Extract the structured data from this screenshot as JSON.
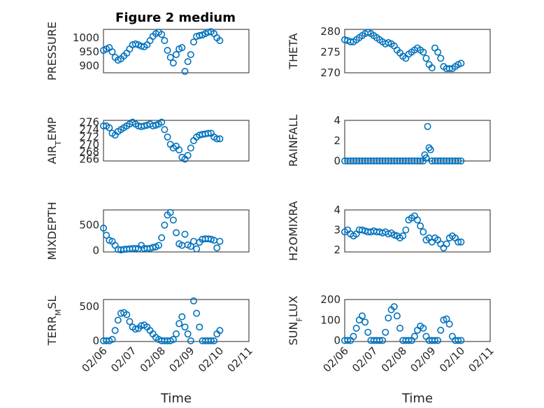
{
  "figure_title": "Figure 2 medium",
  "colors": {
    "marker": "#0072BD",
    "axis": "#262626",
    "grid": "#dcdcdc"
  },
  "chart_data": [
    {
      "type": "scatter",
      "marker": "circle-open",
      "grid": true,
      "title": "Figure 2 medium",
      "ylabel": "PRESSURE",
      "xlabel": "",
      "xlim": [
        0,
        5
      ],
      "ylim": [
        875,
        1030
      ],
      "yticks": [
        900,
        950,
        1000
      ],
      "yticklabels": [
        "900",
        "950",
        "1000"
      ],
      "xticklabels": [],
      "x": [
        0.0,
        0.1,
        0.2,
        0.3,
        0.4,
        0.5,
        0.6,
        0.7,
        0.8,
        0.9,
        1.0,
        1.1,
        1.2,
        1.3,
        1.4,
        1.5,
        1.6,
        1.7,
        1.8,
        1.9,
        2.0,
        2.1,
        2.2,
        2.3,
        2.4,
        2.5,
        2.6,
        2.7,
        2.8,
        2.9,
        3.0,
        3.1,
        3.2,
        3.3,
        3.4,
        3.5,
        3.6,
        3.7,
        3.8,
        3.9,
        4.0
      ],
      "y": [
        955,
        960,
        965,
        950,
        930,
        920,
        925,
        935,
        945,
        960,
        975,
        978,
        975,
        970,
        968,
        975,
        990,
        1005,
        1015,
        1020,
        1012,
        990,
        955,
        930,
        910,
        940,
        960,
        965,
        880,
        915,
        940,
        985,
        1005,
        1008,
        1010,
        1015,
        1020,
        1022,
        1015,
        1000,
        990
      ]
    },
    {
      "type": "scatter",
      "marker": "circle-open",
      "grid": true,
      "ylabel": "THETA",
      "xlabel": "",
      "xlim": [
        0,
        5
      ],
      "ylim": [
        270,
        280.5
      ],
      "yticks": [
        270,
        275,
        280
      ],
      "yticklabels": [
        "270",
        "275",
        "280"
      ],
      "xticklabels": [],
      "x": [
        0.0,
        0.1,
        0.2,
        0.3,
        0.4,
        0.5,
        0.6,
        0.7,
        0.8,
        0.9,
        1.0,
        1.1,
        1.2,
        1.3,
        1.4,
        1.5,
        1.6,
        1.7,
        1.8,
        1.9,
        2.0,
        2.1,
        2.2,
        2.3,
        2.4,
        2.5,
        2.6,
        2.7,
        2.8,
        2.9,
        3.0,
        3.1,
        3.2,
        3.3,
        3.4,
        3.5,
        3.6,
        3.7,
        3.8,
        3.9,
        4.0
      ],
      "y": [
        278,
        277.8,
        277.5,
        277.5,
        278,
        278.5,
        279,
        279.5,
        279.8,
        279.5,
        279,
        278.5,
        278,
        277.5,
        277,
        277.3,
        277,
        276.5,
        275.5,
        274.8,
        274,
        273.5,
        274.5,
        275,
        275.5,
        276,
        275.5,
        275,
        273.5,
        272,
        271.2,
        276,
        275,
        273.5,
        271.5,
        271,
        271,
        271,
        271.5,
        272,
        272.3
      ]
    },
    {
      "type": "scatter",
      "marker": "circle-open",
      "grid": true,
      "ylabel": "AIR_TEMP",
      "xlabel": "",
      "xlim": [
        0,
        5
      ],
      "ylim": [
        265.5,
        276.5
      ],
      "yticks": [
        266,
        268,
        270,
        272,
        274,
        276
      ],
      "yticklabels": [
        "266",
        "268",
        "270",
        "272",
        "274",
        "276"
      ],
      "xticklabels": [],
      "x": [
        0.0,
        0.1,
        0.2,
        0.3,
        0.4,
        0.5,
        0.6,
        0.7,
        0.8,
        0.9,
        1.0,
        1.1,
        1.2,
        1.3,
        1.4,
        1.5,
        1.6,
        1.7,
        1.8,
        1.9,
        2.0,
        2.1,
        2.2,
        2.3,
        2.4,
        2.5,
        2.6,
        2.7,
        2.8,
        2.9,
        3.0,
        3.1,
        3.2,
        3.3,
        3.4,
        3.5,
        3.6,
        3.7,
        3.8,
        3.9,
        4.0
      ],
      "y": [
        275,
        275,
        274.5,
        273,
        272.5,
        273.5,
        274,
        274.5,
        275,
        275.5,
        276,
        275.5,
        275,
        274.8,
        275,
        275.2,
        275.5,
        275,
        275.2,
        275.5,
        276,
        274,
        272,
        270,
        269,
        269.5,
        268.5,
        266.5,
        266,
        267,
        269,
        271,
        272,
        272.5,
        272.7,
        272.8,
        273,
        273,
        272,
        271.5,
        271.5
      ]
    },
    {
      "type": "scatter",
      "marker": "circle-open",
      "grid": true,
      "ylabel": "RAINFALL",
      "xlabel": "",
      "xlim": [
        0,
        5
      ],
      "ylim": [
        0,
        4
      ],
      "yticks": [
        0,
        2,
        4
      ],
      "yticklabels": [
        "0",
        "2",
        "4"
      ],
      "xticklabels": [],
      "x": [
        0.0,
        0.1,
        0.2,
        0.3,
        0.4,
        0.5,
        0.6,
        0.7,
        0.8,
        0.9,
        1.0,
        1.1,
        1.2,
        1.3,
        1.4,
        1.5,
        1.6,
        1.7,
        1.8,
        1.9,
        2.0,
        2.1,
        2.2,
        2.3,
        2.4,
        2.5,
        2.6,
        2.7,
        2.75,
        2.8,
        2.85,
        2.9,
        2.95,
        3.0,
        3.1,
        3.2,
        3.3,
        3.4,
        3.5,
        3.6,
        3.7,
        3.8,
        3.9,
        4.0
      ],
      "y": [
        0,
        0,
        0,
        0,
        0,
        0,
        0,
        0,
        0,
        0,
        0,
        0,
        0,
        0,
        0,
        0,
        0,
        0,
        0,
        0,
        0,
        0,
        0,
        0,
        0,
        0,
        0,
        0,
        0.6,
        0.3,
        3.4,
        1.3,
        1.1,
        0,
        0,
        0,
        0,
        0,
        0,
        0,
        0,
        0,
        0,
        0
      ]
    },
    {
      "type": "scatter",
      "marker": "circle-open",
      "grid": true,
      "ylabel": "MIXDEPTH",
      "xlabel": "",
      "xlim": [
        0,
        5
      ],
      "ylim": [
        -30,
        800
      ],
      "yticks": [
        0,
        500
      ],
      "yticklabels": [
        "0",
        "500"
      ],
      "xticklabels": [],
      "x": [
        0.0,
        0.1,
        0.2,
        0.3,
        0.4,
        0.5,
        0.6,
        0.7,
        0.8,
        0.9,
        1.0,
        1.1,
        1.2,
        1.3,
        1.4,
        1.5,
        1.6,
        1.7,
        1.8,
        1.9,
        2.0,
        2.1,
        2.2,
        2.3,
        2.4,
        2.5,
        2.6,
        2.7,
        2.8,
        2.9,
        3.0,
        3.1,
        3.2,
        3.3,
        3.4,
        3.5,
        3.6,
        3.7,
        3.8,
        3.9,
        4.0
      ],
      "y": [
        440,
        300,
        200,
        180,
        100,
        20,
        10,
        20,
        25,
        30,
        35,
        40,
        35,
        100,
        40,
        35,
        40,
        60,
        70,
        100,
        250,
        500,
        700,
        750,
        600,
        350,
        130,
        100,
        320,
        110,
        80,
        180,
        30,
        160,
        220,
        230,
        230,
        220,
        200,
        50,
        180
      ]
    },
    {
      "type": "scatter",
      "marker": "circle-open",
      "grid": true,
      "ylabel": "H2OMIXRA",
      "xlabel": "",
      "xlim": [
        0,
        5
      ],
      "ylim": [
        1.9,
        4
      ],
      "yticks": [
        2,
        3,
        4
      ],
      "yticklabels": [
        "2",
        "3",
        "4"
      ],
      "xticklabels": [],
      "x": [
        0.0,
        0.1,
        0.2,
        0.3,
        0.4,
        0.5,
        0.6,
        0.7,
        0.8,
        0.9,
        1.0,
        1.1,
        1.2,
        1.3,
        1.4,
        1.5,
        1.6,
        1.7,
        1.8,
        1.9,
        2.0,
        2.1,
        2.2,
        2.3,
        2.4,
        2.5,
        2.6,
        2.7,
        2.8,
        2.9,
        3.0,
        3.1,
        3.2,
        3.3,
        3.4,
        3.5,
        3.6,
        3.7,
        3.8,
        3.9,
        4.0
      ],
      "y": [
        2.9,
        3.0,
        2.8,
        2.7,
        2.8,
        3.0,
        3.0,
        2.95,
        2.9,
        2.9,
        2.95,
        2.9,
        2.9,
        2.85,
        2.9,
        2.8,
        2.85,
        2.75,
        2.7,
        2.6,
        2.7,
        3.0,
        3.5,
        3.6,
        3.7,
        3.5,
        3.2,
        2.9,
        2.5,
        2.6,
        2.4,
        2.6,
        2.5,
        2.3,
        2.1,
        2.3,
        2.6,
        2.7,
        2.6,
        2.4,
        2.4
      ]
    },
    {
      "type": "scatter",
      "marker": "circle-open",
      "grid": true,
      "ylabel": "TERR_MSL",
      "xlabel": "Time",
      "xlim": [
        0,
        5
      ],
      "ylim": [
        -10,
        600
      ],
      "yticks": [
        0,
        500
      ],
      "yticklabels": [
        "0",
        "500"
      ],
      "xticks": [
        0,
        1,
        2,
        3,
        4,
        5
      ],
      "xticklabels": [
        "02/06",
        "02/07",
        "02/08",
        "02/09",
        "02/10",
        "02/11"
      ],
      "x": [
        0.0,
        0.1,
        0.2,
        0.3,
        0.4,
        0.5,
        0.6,
        0.7,
        0.8,
        0.9,
        1.0,
        1.1,
        1.2,
        1.3,
        1.4,
        1.5,
        1.6,
        1.7,
        1.8,
        1.9,
        2.0,
        2.1,
        2.2,
        2.3,
        2.4,
        2.5,
        2.6,
        2.7,
        2.8,
        2.9,
        3.0,
        3.1,
        3.2,
        3.3,
        3.4,
        3.5,
        3.6,
        3.7,
        3.8,
        3.9,
        4.0
      ],
      "y": [
        0,
        0,
        0,
        20,
        150,
        300,
        400,
        410,
        380,
        280,
        200,
        170,
        180,
        220,
        230,
        200,
        150,
        100,
        50,
        20,
        0,
        0,
        0,
        0,
        20,
        100,
        250,
        350,
        200,
        100,
        0,
        580,
        400,
        200,
        0,
        0,
        0,
        0,
        0,
        100,
        150
      ]
    },
    {
      "type": "scatter",
      "marker": "circle-open",
      "grid": true,
      "ylabel": "SUN_FLUX",
      "xlabel": "Time",
      "xlim": [
        0,
        5
      ],
      "ylim": [
        -5,
        200
      ],
      "yticks": [
        0,
        100,
        200
      ],
      "yticklabels": [
        "0",
        "100",
        "200"
      ],
      "xticks": [
        0,
        1,
        2,
        3,
        4,
        5
      ],
      "xticklabels": [
        "02/06",
        "02/07",
        "02/08",
        "02/09",
        "02/10",
        "02/11"
      ],
      "x": [
        0.0,
        0.1,
        0.2,
        0.3,
        0.4,
        0.5,
        0.6,
        0.7,
        0.8,
        0.9,
        1.0,
        1.1,
        1.2,
        1.3,
        1.4,
        1.5,
        1.6,
        1.7,
        1.8,
        1.9,
        2.0,
        2.1,
        2.2,
        2.3,
        2.4,
        2.5,
        2.6,
        2.7,
        2.8,
        2.9,
        3.0,
        3.1,
        3.2,
        3.3,
        3.4,
        3.5,
        3.6,
        3.7,
        3.8,
        3.9,
        4.0
      ],
      "y": [
        0,
        0,
        0,
        20,
        60,
        100,
        120,
        90,
        40,
        0,
        0,
        0,
        0,
        0,
        40,
        110,
        150,
        165,
        120,
        60,
        0,
        0,
        0,
        0,
        20,
        50,
        70,
        60,
        20,
        0,
        0,
        0,
        0,
        50,
        100,
        105,
        80,
        20,
        0,
        0,
        0
      ]
    }
  ]
}
